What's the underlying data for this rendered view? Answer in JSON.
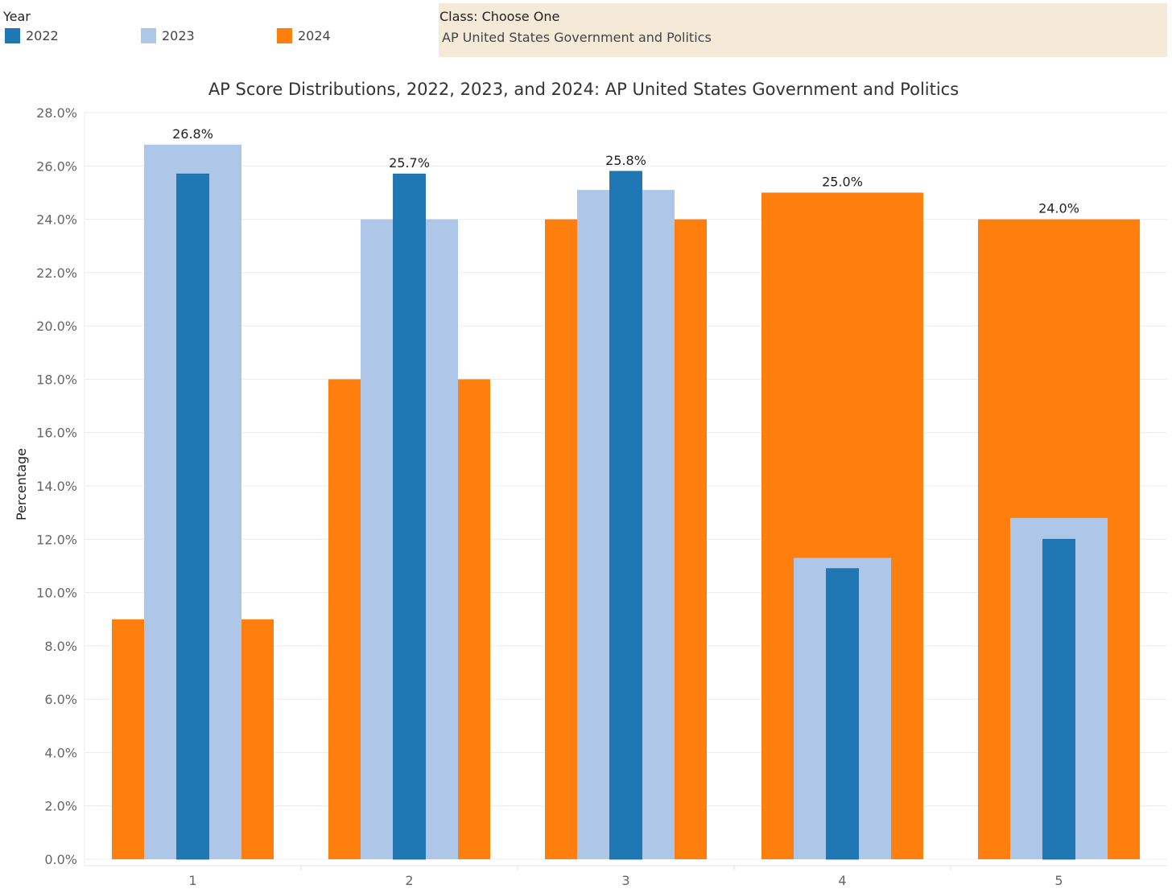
{
  "legend": {
    "title": "Year",
    "items": [
      {
        "label": "2022",
        "color": "#1f77b4"
      },
      {
        "label": "2023",
        "color": "#aec7e8"
      },
      {
        "label": "2024",
        "color": "#ff7f0e"
      }
    ]
  },
  "filter": {
    "title": "Class: Choose One",
    "value": "AP United States Government and Politics"
  },
  "chart_data": {
    "type": "bar",
    "title": "AP Score Distributions, 2022, 2023, and 2024: AP United States Government and Politics",
    "xlabel": "",
    "ylabel": "Percentage",
    "ylim": [
      0,
      28
    ],
    "yticks": [
      0,
      2,
      4,
      6,
      8,
      10,
      12,
      14,
      16,
      18,
      20,
      22,
      24,
      26,
      28
    ],
    "ytick_format": "percent_1dp",
    "grid": true,
    "bar_style": "overlapping_nested",
    "categories": [
      "1",
      "2",
      "3",
      "4",
      "5"
    ],
    "series": [
      {
        "name": "2022",
        "color": "#1f77b4",
        "values": [
          25.7,
          25.7,
          25.8,
          10.9,
          12.0
        ]
      },
      {
        "name": "2023",
        "color": "#aec7e8",
        "values": [
          26.8,
          24.0,
          25.1,
          11.3,
          12.8
        ]
      },
      {
        "name": "2024",
        "color": "#ff7f0e",
        "values": [
          9.0,
          18.0,
          24.0,
          25.0,
          24.0
        ]
      }
    ],
    "data_labels": [
      "26.8%",
      "25.7%",
      "25.8%",
      "25.0%",
      "24.0%"
    ]
  }
}
